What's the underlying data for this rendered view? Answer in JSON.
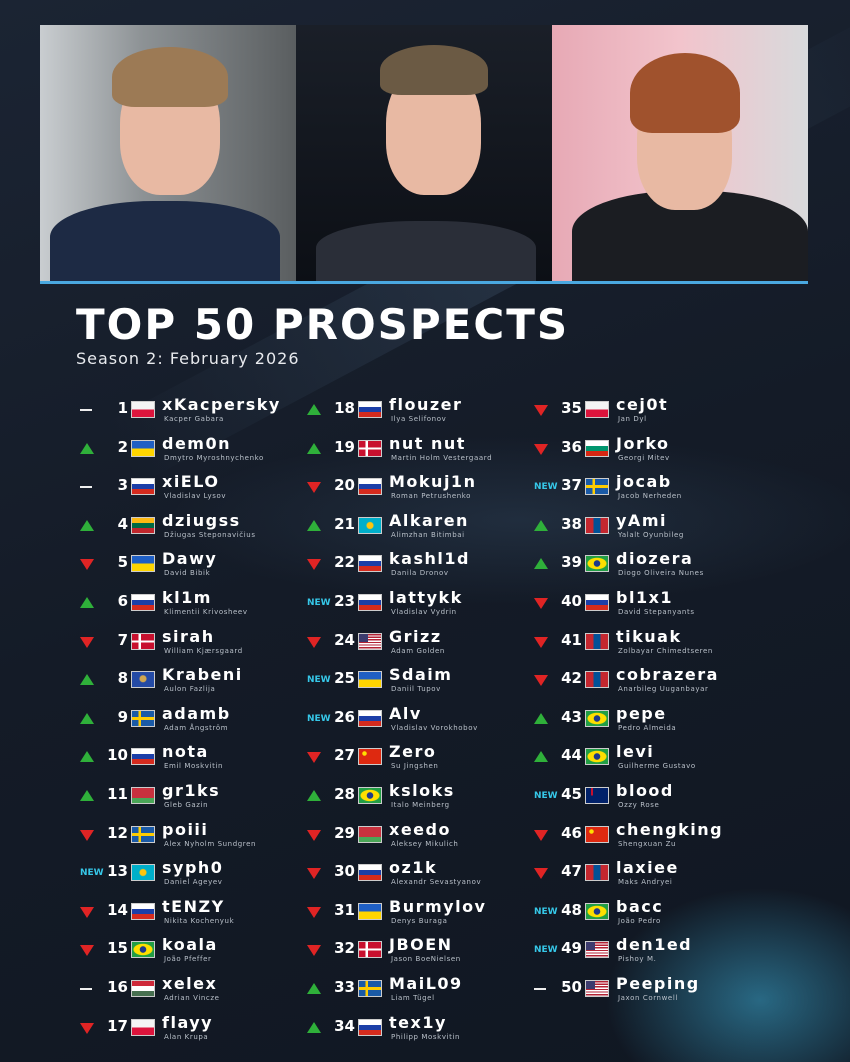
{
  "title": "TOP 50 PROSPECTS",
  "subtitle": "Season 2: February 2026",
  "new_label": "NEW",
  "colors": {
    "up": "#2fb03a",
    "down": "#e02424",
    "new": "#36c7e8",
    "accent": "#4aa8e0"
  },
  "players": [
    {
      "rank": 1,
      "trend": "same",
      "flag": "PL",
      "nick": "xKacpersky",
      "name": "Kacper Gabara"
    },
    {
      "rank": 2,
      "trend": "up",
      "flag": "UA",
      "nick": "dem0n",
      "name": "Dmytro Myroshnychenko"
    },
    {
      "rank": 3,
      "trend": "same",
      "flag": "RU",
      "nick": "xiELO",
      "name": "Vladislav Lysov"
    },
    {
      "rank": 4,
      "trend": "up",
      "flag": "LT",
      "nick": "dziugss",
      "name": "Džiugas Steponavičius"
    },
    {
      "rank": 5,
      "trend": "down",
      "flag": "UA",
      "nick": "Dawy",
      "name": "David Bibik"
    },
    {
      "rank": 6,
      "trend": "up",
      "flag": "RU",
      "nick": "kl1m",
      "name": "Klimentii Krivosheev"
    },
    {
      "rank": 7,
      "trend": "down",
      "flag": "DK",
      "nick": "sirah",
      "name": "William Kjærsgaard"
    },
    {
      "rank": 8,
      "trend": "up",
      "flag": "XK",
      "nick": "Krabeni",
      "name": "Aulon Fazlija"
    },
    {
      "rank": 9,
      "trend": "up",
      "flag": "SE",
      "nick": "adamb",
      "name": "Adam Ångström"
    },
    {
      "rank": 10,
      "trend": "up",
      "flag": "RU",
      "nick": "nota",
      "name": "Emil Moskvitin"
    },
    {
      "rank": 11,
      "trend": "up",
      "flag": "BY",
      "nick": "gr1ks",
      "name": "Gleb Gazin"
    },
    {
      "rank": 12,
      "trend": "down",
      "flag": "SE",
      "nick": "poiii",
      "name": "Alex Nyholm Sundgren"
    },
    {
      "rank": 13,
      "trend": "new",
      "flag": "KZ",
      "nick": "syph0",
      "name": "Daniel Ageyev"
    },
    {
      "rank": 14,
      "trend": "down",
      "flag": "RU",
      "nick": "tENZY",
      "name": "Nikita Kochenyuk"
    },
    {
      "rank": 15,
      "trend": "down",
      "flag": "BR",
      "nick": "koala",
      "name": "João Pfeffer"
    },
    {
      "rank": 16,
      "trend": "same",
      "flag": "HU",
      "nick": "xelex",
      "name": "Adrian Vincze"
    },
    {
      "rank": 17,
      "trend": "down",
      "flag": "PL",
      "nick": "flayy",
      "name": "Alan Krupa"
    },
    {
      "rank": 18,
      "trend": "up",
      "flag": "RU",
      "nick": "flouzer",
      "name": "Ilya Selifonov"
    },
    {
      "rank": 19,
      "trend": "up",
      "flag": "DK",
      "nick": "nut nut",
      "name": "Martin Holm Vestergaard"
    },
    {
      "rank": 20,
      "trend": "down",
      "flag": "RU",
      "nick": "Mokuj1n",
      "name": "Roman Petrushenko"
    },
    {
      "rank": 21,
      "trend": "up",
      "flag": "KZ",
      "nick": "Alkaren",
      "name": "Alimzhan Bitimbai"
    },
    {
      "rank": 22,
      "trend": "down",
      "flag": "RU",
      "nick": "kashl1d",
      "name": "Danila Dronov"
    },
    {
      "rank": 23,
      "trend": "new",
      "flag": "RU",
      "nick": "lattykk",
      "name": "Vladislav Vydrin"
    },
    {
      "rank": 24,
      "trend": "down",
      "flag": "US",
      "nick": "Grizz",
      "name": "Adam Golden"
    },
    {
      "rank": 25,
      "trend": "new",
      "flag": "UA",
      "nick": "Sdaim",
      "name": "Daniil Tupov"
    },
    {
      "rank": 26,
      "trend": "new",
      "flag": "RU",
      "nick": "Alv",
      "name": "Vladislav Vorokhobov"
    },
    {
      "rank": 27,
      "trend": "down",
      "flag": "CN",
      "nick": "Zero",
      "name": "Su Jingshen"
    },
    {
      "rank": 28,
      "trend": "up",
      "flag": "BR",
      "nick": "ksloks",
      "name": "Italo Meinberg"
    },
    {
      "rank": 29,
      "trend": "down",
      "flag": "BY",
      "nick": "xeedo",
      "name": "Aleksey Mikulich"
    },
    {
      "rank": 30,
      "trend": "down",
      "flag": "RU",
      "nick": "oz1k",
      "name": "Alexandr Sevastyanov"
    },
    {
      "rank": 31,
      "trend": "down",
      "flag": "UA",
      "nick": "Burmylov",
      "name": "Denys Buraga"
    },
    {
      "rank": 32,
      "trend": "down",
      "flag": "DK",
      "nick": "JBOEN",
      "name": "Jason BoeNielsen"
    },
    {
      "rank": 33,
      "trend": "up",
      "flag": "SE",
      "nick": "MaiL09",
      "name": "Liam Tügel"
    },
    {
      "rank": 34,
      "trend": "up",
      "flag": "RU",
      "nick": "tex1y",
      "name": "Philipp Moskvitin"
    },
    {
      "rank": 35,
      "trend": "down",
      "flag": "PL",
      "nick": "cej0t",
      "name": "Jan Dyl"
    },
    {
      "rank": 36,
      "trend": "down",
      "flag": "BG",
      "nick": "Jorko",
      "name": "Georgi Mitev"
    },
    {
      "rank": 37,
      "trend": "new",
      "flag": "SE",
      "nick": "jocab",
      "name": "Jacob Nerheden"
    },
    {
      "rank": 38,
      "trend": "up",
      "flag": "MN",
      "nick": "yAmi",
      "name": "Yalalt Oyunbileg"
    },
    {
      "rank": 39,
      "trend": "up",
      "flag": "BR",
      "nick": "diozera",
      "name": "Diogo Oliveira Nunes"
    },
    {
      "rank": 40,
      "trend": "down",
      "flag": "RU",
      "nick": "bl1x1",
      "name": "David Stepanyants"
    },
    {
      "rank": 41,
      "trend": "down",
      "flag": "MN",
      "nick": "tikuak",
      "name": "Zolbayar Chimedtseren"
    },
    {
      "rank": 42,
      "trend": "down",
      "flag": "MN",
      "nick": "cobrazera",
      "name": "Anarbileg Uuganbayar"
    },
    {
      "rank": 43,
      "trend": "up",
      "flag": "BR",
      "nick": "pepe",
      "name": "Pedro Almeida"
    },
    {
      "rank": 44,
      "trend": "up",
      "flag": "BR",
      "nick": "levi",
      "name": "Guilherme Gustavo"
    },
    {
      "rank": 45,
      "trend": "new",
      "flag": "AU",
      "nick": "blood",
      "name": "Ozzy Rose"
    },
    {
      "rank": 46,
      "trend": "down",
      "flag": "CN",
      "nick": "chengking",
      "name": "Shengxuan Zu"
    },
    {
      "rank": 47,
      "trend": "down",
      "flag": "MN",
      "nick": "laxiee",
      "name": "Maks Andryei"
    },
    {
      "rank": 48,
      "trend": "new",
      "flag": "BR",
      "nick": "bacc",
      "name": "João Pedro"
    },
    {
      "rank": 49,
      "trend": "new",
      "flag": "US",
      "nick": "den1ed",
      "name": "Pishoy M."
    },
    {
      "rank": 50,
      "trend": "same",
      "flag": "US",
      "nick": "Peeping",
      "name": "Jaxon Cornwell"
    }
  ]
}
